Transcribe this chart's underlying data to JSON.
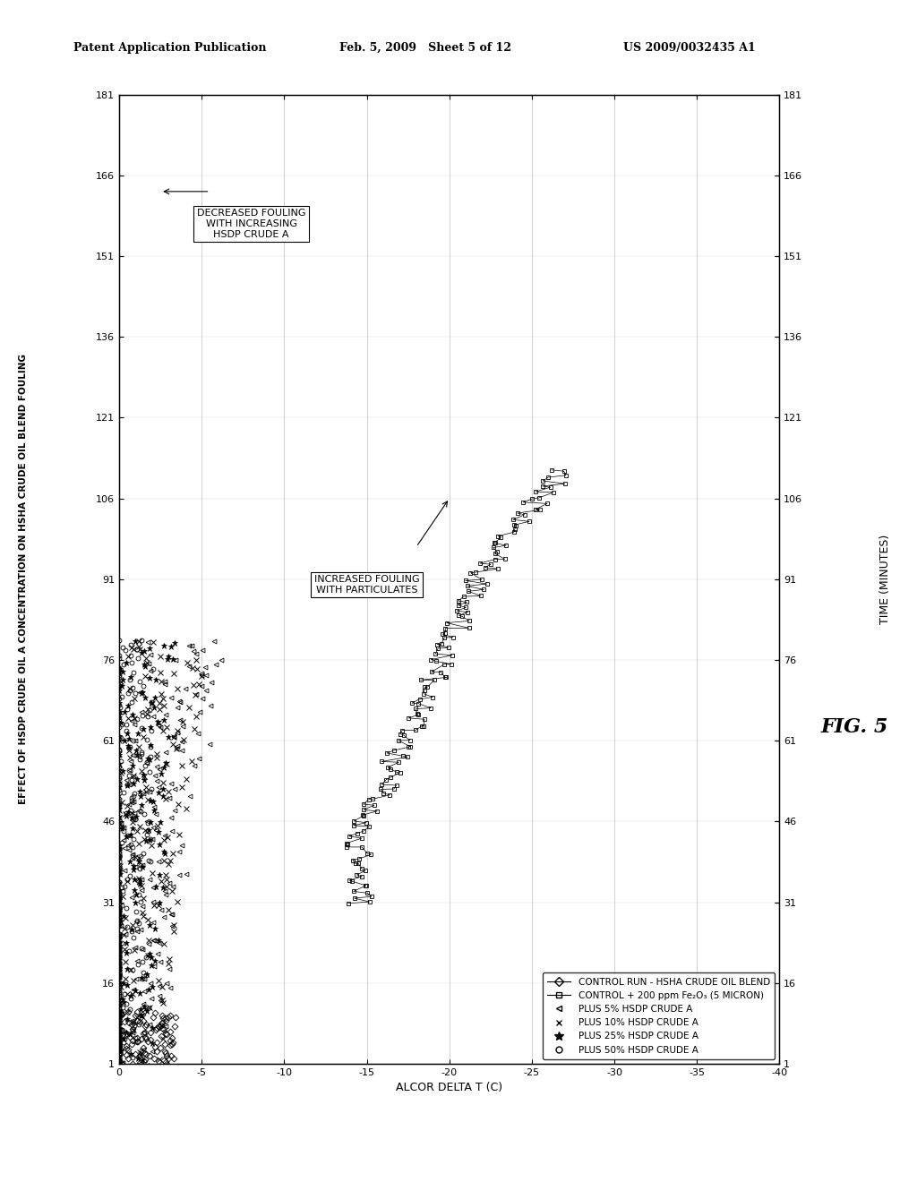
{
  "title_line1": "EFFECT OF HSDP CRUDE OIL A CONCENTRATION ON HSHA CRUDE OIL BLEND FOULING",
  "header_left": "Patent Application Publication",
  "header_mid": "Feb. 5, 2009   Sheet 5 of 12",
  "header_right": "US 2009/0032435 A1",
  "fig_label": "FIG. 5",
  "time_label": "TIME (MINUTES)",
  "delta_label": "ALCOR DELTA T (C)",
  "time_ticks": [
    1,
    16,
    31,
    46,
    61,
    76,
    91,
    106,
    121,
    136,
    151,
    166,
    181
  ],
  "delta_ticks": [
    0,
    -5,
    -10,
    -15,
    -20,
    -25,
    -30,
    -35,
    -40
  ],
  "legend_entries": [
    "CONTROL RUN - HSHA CRUDE OIL BLEND",
    "CONTROL + 200 ppm Fe₂O₃ (5 MICRON)",
    "PLUS 5% HSDP CRUDE A",
    "PLUS 10% HSDP CRUDE A",
    "PLUS 25% HSDP CRUDE A",
    "PLUS 50% HSDP CRUDE A"
  ],
  "annotation1": "DECREASED FOULING\nWITH INCREASING\nHSDP CRUDE A",
  "annotation2": "INCREASED FOULING\nWITH PARTICULATES"
}
